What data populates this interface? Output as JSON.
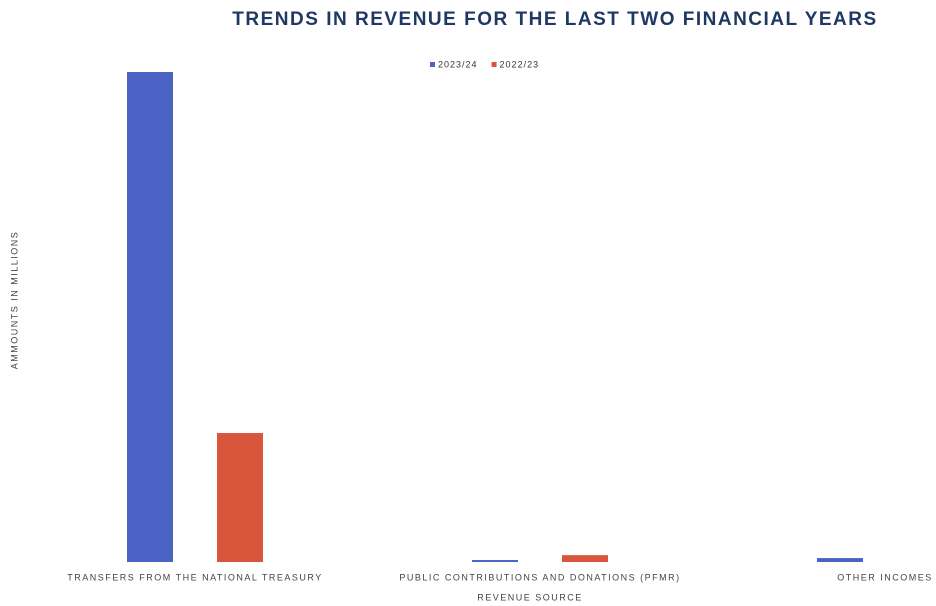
{
  "chart_data": {
    "type": "bar",
    "title": "TRENDS IN REVENUE FOR THE LAST TWO FINANCIAL YEARS",
    "x_label": "REVENUE SOURCE",
    "y_label": "AMMOUNTS IN MILLIONS",
    "categories": [
      "TRANSFERS FROM THE NATIONAL TREASURY",
      "PUBLIC CONTRIBUTIONS AND DONATIONS (PFMR)",
      "OTHER INCOMES"
    ],
    "series": [
      {
        "name": "2023/24",
        "color": "#4a63c4",
        "values": [
          5000,
          20,
          40
        ]
      },
      {
        "name": "2022/23",
        "color": "#d9553b",
        "values": [
          1316,
          70,
          0
        ]
      }
    ],
    "ylim": [
      0,
      5500
    ],
    "legend": "top"
  }
}
